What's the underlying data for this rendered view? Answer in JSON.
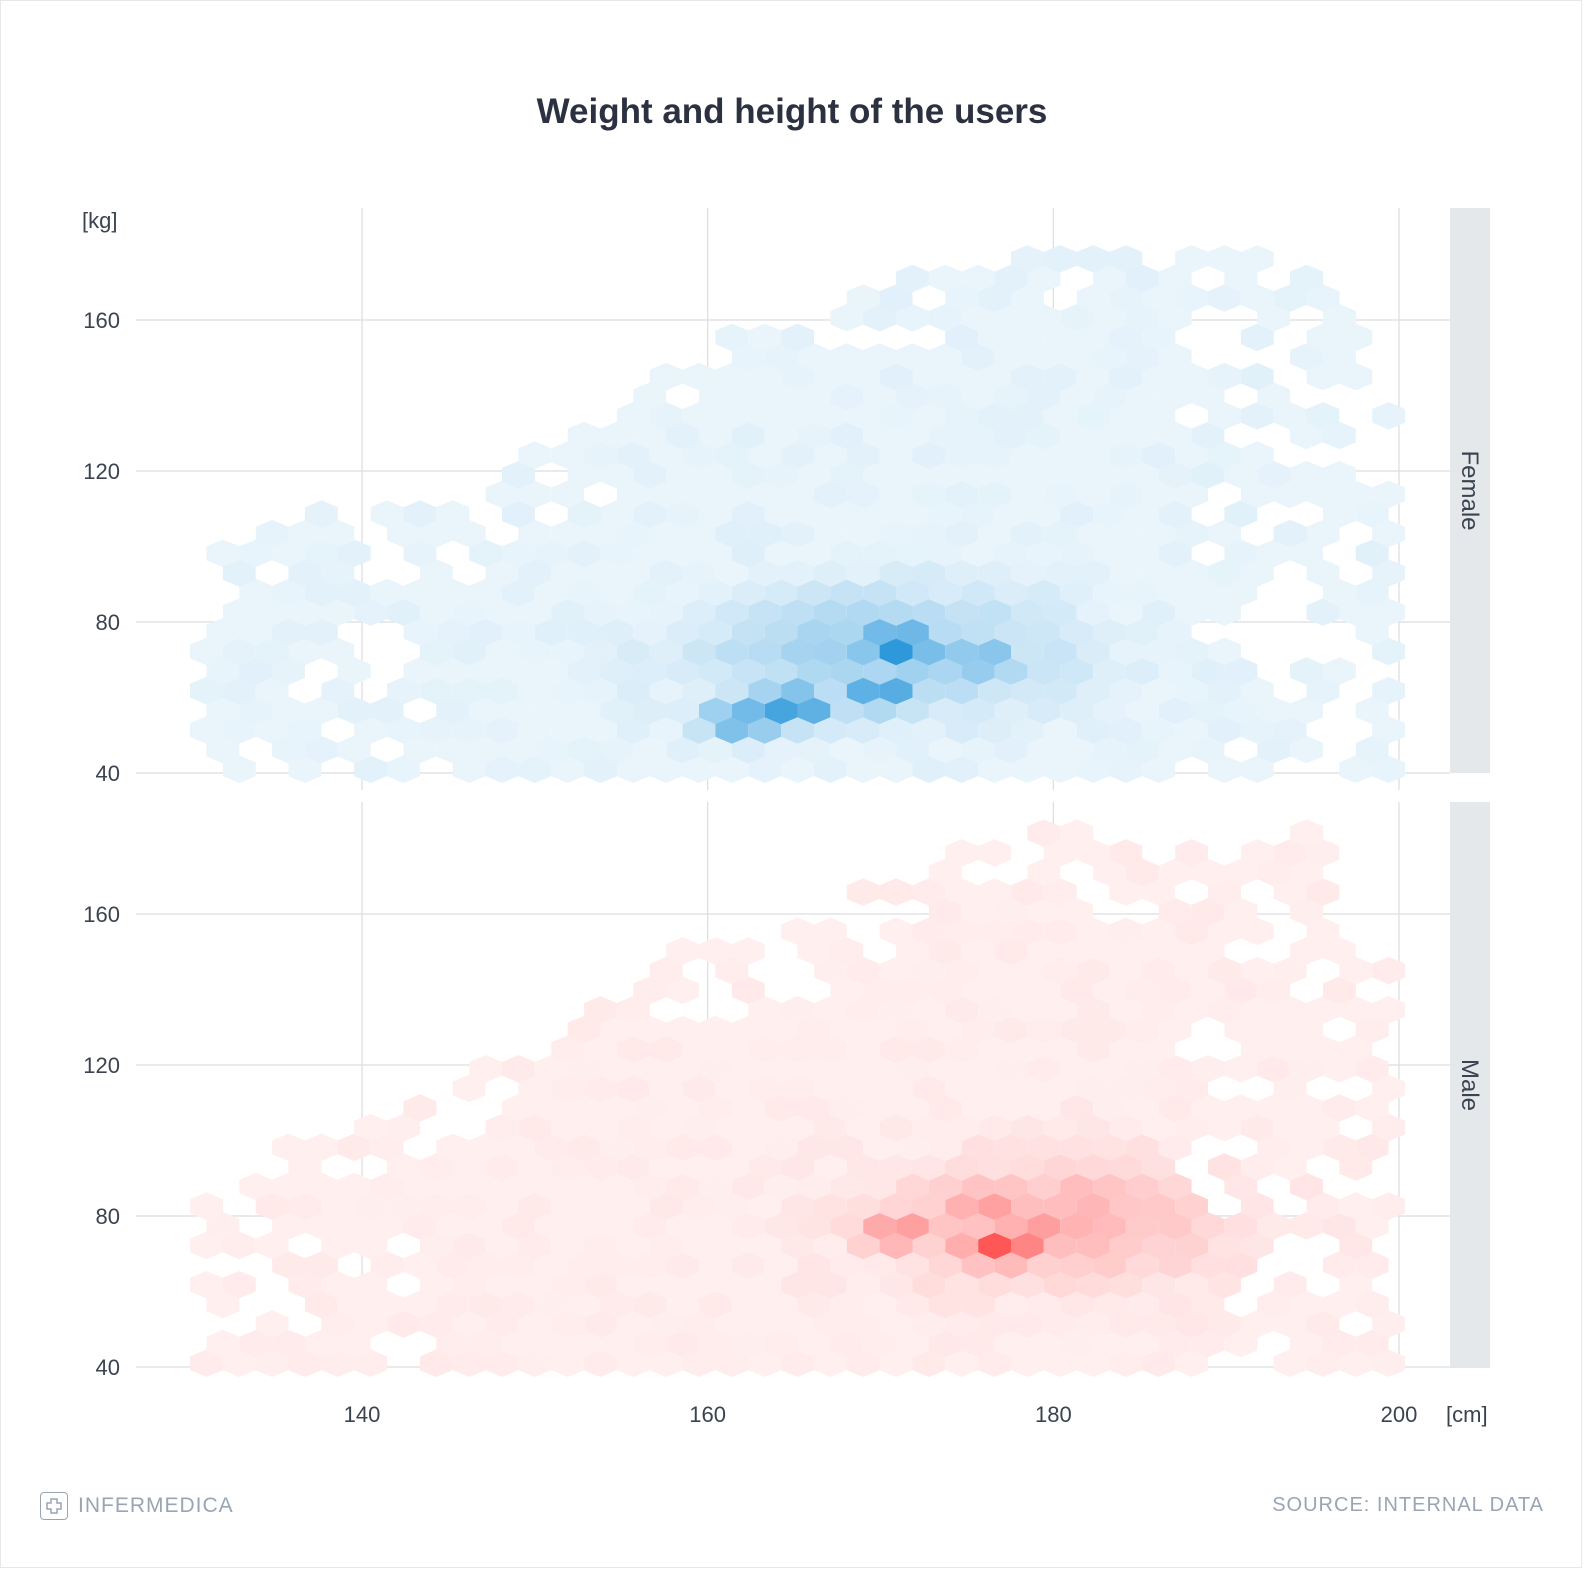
{
  "title": "Weight and height of the users",
  "footer": {
    "brand": "INFERMEDICA",
    "source": "SOURCE: INTERNAL DATA"
  },
  "colors": {
    "female": "#0f8ad6",
    "male": "#ff4d4d",
    "grid": "#d9dde1",
    "strip": "#e5e8eb",
    "text": "#3b4350",
    "muted": "#9aa5b4"
  },
  "chart_data": {
    "type": "hexbin",
    "xlabel": "[cm]",
    "ylabel": "[kg]",
    "xlim": [
      125,
      202
    ],
    "ylim": [
      40,
      185
    ],
    "x_ticks": [
      140,
      160,
      180,
      200
    ],
    "y_ticks": [
      40,
      80,
      120,
      160
    ],
    "panels": [
      {
        "name": "Female",
        "color": "#0f8ad6",
        "center": [
          170,
          72
        ],
        "height_extent": [
          131,
          200
        ],
        "weight_limit": [
          [
            132,
            101
          ],
          [
            138,
            112
          ],
          [
            145,
            111
          ],
          [
            150,
            125
          ],
          [
            155,
            138
          ],
          [
            160,
            155
          ],
          [
            165,
            161
          ],
          [
            170,
            168
          ],
          [
            175,
            178
          ],
          [
            180,
            181
          ],
          [
            185,
            180
          ],
          [
            190,
            178
          ],
          [
            195,
            175
          ],
          [
            200,
            145
          ]
        ],
        "hotspots": [
          {
            "height": 171,
            "weight": 74,
            "density": 1.0
          },
          {
            "height": 165,
            "weight": 58,
            "density": 0.85
          },
          {
            "height": 176,
            "weight": 70,
            "density": 0.6
          },
          {
            "height": 170,
            "weight": 62,
            "density": 0.8
          },
          {
            "height": 162,
            "weight": 54,
            "density": 0.72
          }
        ]
      },
      {
        "name": "Male",
        "color": "#ff4d4d",
        "center": [
          180,
          78
        ],
        "height_extent": [
          131,
          200
        ],
        "weight_limit": [
          [
            132,
            85
          ],
          [
            136,
            103
          ],
          [
            140,
            102
          ],
          [
            145,
            117
          ],
          [
            150,
            122
          ],
          [
            155,
            148
          ],
          [
            160,
            152
          ],
          [
            165,
            155
          ],
          [
            170,
            170
          ],
          [
            175,
            178
          ],
          [
            180,
            183
          ],
          [
            185,
            180
          ],
          [
            190,
            179
          ],
          [
            195,
            182
          ],
          [
            200,
            140
          ]
        ],
        "hotspots": [
          {
            "height": 177,
            "weight": 72,
            "density": 1.0
          },
          {
            "height": 171,
            "weight": 76,
            "density": 0.6
          },
          {
            "height": 179,
            "weight": 79,
            "density": 0.55
          },
          {
            "height": 176,
            "weight": 84,
            "density": 0.55
          },
          {
            "height": 182,
            "weight": 85,
            "density": 0.45
          }
        ]
      }
    ]
  }
}
